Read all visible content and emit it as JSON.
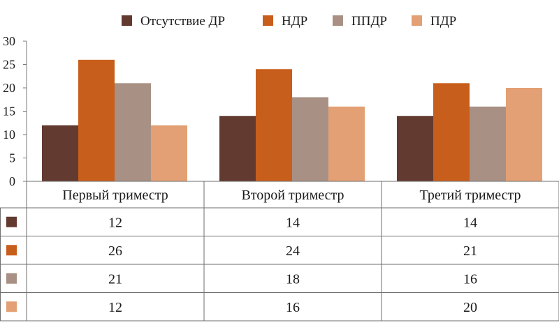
{
  "chart_data": {
    "type": "bar",
    "categories": [
      "Первый триместр",
      "Второй триместр",
      "Третий триместр"
    ],
    "series": [
      {
        "name": "Отсутствие ДР",
        "color": "#633a30",
        "values": [
          12,
          14,
          14
        ]
      },
      {
        "name": "НДР",
        "color": "#c85e1c",
        "values": [
          26,
          24,
          21
        ]
      },
      {
        "name": "ППДР",
        "color": "#a89184",
        "values": [
          21,
          18,
          16
        ]
      },
      {
        "name": "ПДР",
        "color": "#e3a074",
        "values": [
          12,
          16,
          20
        ]
      }
    ],
    "ylim": [
      0,
      30
    ],
    "yticks": [
      0,
      5,
      10,
      15,
      20,
      25,
      30
    ],
    "legend": "top",
    "data_table": true,
    "grid": false
  }
}
